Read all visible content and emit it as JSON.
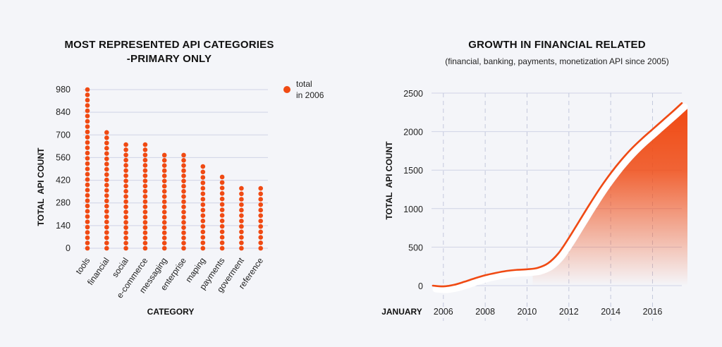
{
  "chart_data": [
    {
      "type": "bar",
      "title": "MOST REPRESENTED API CATEGORIES",
      "subtitle": "-PRIMARY ONLY",
      "xlabel": "CATEGORY",
      "ylabel": "TOTAL  API COUNT",
      "yticks": [
        0,
        140,
        280,
        420,
        560,
        700,
        840,
        980
      ],
      "ylim": [
        0,
        980
      ],
      "categories": [
        "tools",
        "financial",
        "social",
        "e-commerce",
        "messaging",
        "enterprise",
        "maping",
        "payments",
        "goverment",
        "reference"
      ],
      "series": [
        {
          "name": "total in 2006",
          "values": [
            980,
            715,
            640,
            640,
            575,
            575,
            505,
            440,
            370,
            370
          ]
        }
      ],
      "legend": {
        "line1": "total",
        "line2": "in 2006",
        "position": "top-right"
      },
      "style": "dot-column",
      "grid": true,
      "color": "#f04a13"
    },
    {
      "type": "area",
      "title": "GROWTH IN FINANCIAL RELATED",
      "subtitle": "(financial, banking, payments, monetization API since 2005)",
      "xlabel": "JANUARY",
      "ylabel": "TOTAL  API COUNT",
      "yticks": [
        0,
        500,
        1000,
        1500,
        2000,
        2500
      ],
      "ylim": [
        0,
        2500
      ],
      "xticks": [
        "2006",
        "2008",
        "2010",
        "2012",
        "2014",
        "2016"
      ],
      "xlim": [
        2005.5,
        2017.4
      ],
      "grid": true,
      "color": "#f04a13",
      "points": [
        {
          "x": 2005.5,
          "y": 0
        },
        {
          "x": 2006.0,
          "y": -10
        },
        {
          "x": 2006.5,
          "y": 10
        },
        {
          "x": 2007.0,
          "y": 50
        },
        {
          "x": 2007.5,
          "y": 95
        },
        {
          "x": 2008.0,
          "y": 135
        },
        {
          "x": 2008.5,
          "y": 165
        },
        {
          "x": 2009.0,
          "y": 190
        },
        {
          "x": 2009.5,
          "y": 205
        },
        {
          "x": 2010.0,
          "y": 212
        },
        {
          "x": 2010.5,
          "y": 230
        },
        {
          "x": 2011.0,
          "y": 290
        },
        {
          "x": 2011.5,
          "y": 420
        },
        {
          "x": 2012.0,
          "y": 620
        },
        {
          "x": 2012.5,
          "y": 840
        },
        {
          "x": 2013.0,
          "y": 1060
        },
        {
          "x": 2013.5,
          "y": 1270
        },
        {
          "x": 2014.0,
          "y": 1460
        },
        {
          "x": 2014.5,
          "y": 1630
        },
        {
          "x": 2015.0,
          "y": 1780
        },
        {
          "x": 2015.5,
          "y": 1910
        },
        {
          "x": 2016.0,
          "y": 2030
        },
        {
          "x": 2016.5,
          "y": 2150
        },
        {
          "x": 2017.0,
          "y": 2270
        },
        {
          "x": 2017.4,
          "y": 2370
        }
      ]
    }
  ]
}
